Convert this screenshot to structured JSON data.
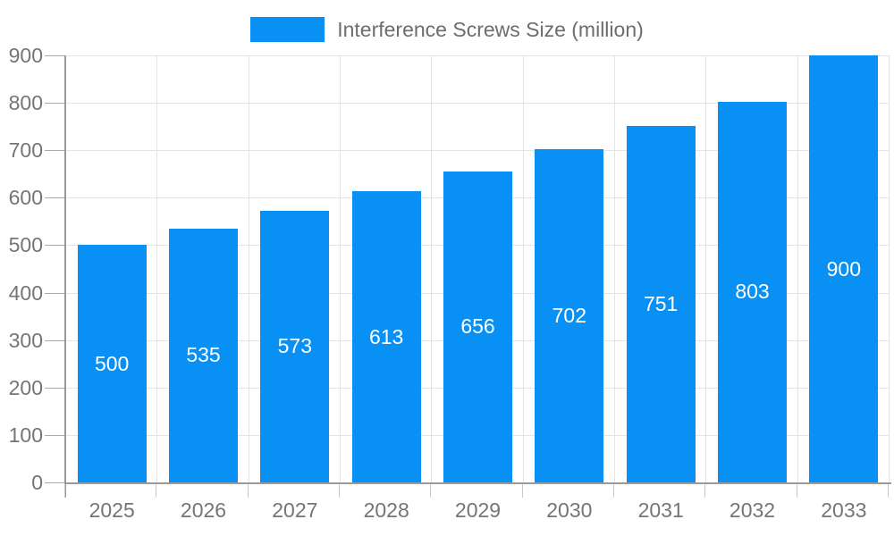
{
  "legend": {
    "label": "Interference Screws Size (million)"
  },
  "colors": {
    "bar": "#0890f5",
    "bar_value_text": "#ffffff",
    "axis_label": "#757575",
    "legend_text": "#6d6d6d",
    "grid_line": "#e4e4e4",
    "axis_line": "#9a9a9a"
  },
  "chart_data": {
    "type": "bar",
    "title": "Interference Screws Size (million)",
    "series_name": "Interference Screws Size (million)",
    "categories": [
      "2025",
      "2026",
      "2027",
      "2028",
      "2029",
      "2030",
      "2031",
      "2032",
      "2033"
    ],
    "values": [
      500,
      535,
      573,
      613,
      656,
      702,
      751,
      803,
      900
    ],
    "value_labels": [
      "500",
      "535",
      "573",
      "613",
      "656",
      "702",
      "751",
      "803",
      "900"
    ],
    "xlabel": "",
    "ylabel": "",
    "ylim": [
      0,
      900
    ],
    "yticks": [
      0,
      100,
      200,
      300,
      400,
      500,
      600,
      700,
      800,
      900
    ],
    "grid": true,
    "legend_position": "top"
  }
}
